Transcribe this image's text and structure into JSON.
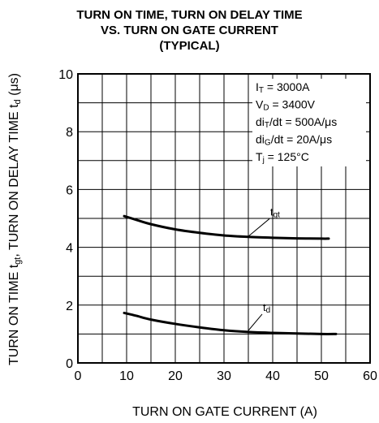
{
  "chart_data": {
    "type": "line",
    "title": [
      "TURN ON TIME, TURN ON DELAY TIME",
      "VS. TURN ON GATE CURRENT",
      "(TYPICAL)"
    ],
    "xlabel": "TURN ON GATE CURRENT  (A)",
    "ylabel": {
      "part1": "TURN ON TIME  ",
      "tgt_main": "t",
      "tgt_sub": "gt",
      "part2": ",  TURN ON DELAY TIME  ",
      "td_main": "t",
      "td_sub": "d",
      "unit": " (μs)"
    },
    "xlim": [
      0,
      60
    ],
    "ylim": [
      0,
      10
    ],
    "x_ticks": [
      "0",
      "10",
      "20",
      "30",
      "40",
      "50",
      "60"
    ],
    "y_ticks": [
      "0",
      "2",
      "4",
      "6",
      "8",
      "10"
    ],
    "grid": true,
    "conditions": [
      {
        "main": "I",
        "sub": "T",
        "rest": " = 3000A"
      },
      {
        "main": "V",
        "sub": "D",
        "rest": " = 3400V"
      },
      {
        "main": "di",
        "sub": "T",
        "rest": "/dt = 500A/μs"
      },
      {
        "main": "di",
        "sub": "G",
        "rest": "/dt = 20A/μs"
      },
      {
        "main": "T",
        "sub": "j",
        "rest": " = 125°C"
      }
    ],
    "series": [
      {
        "label_main": "t",
        "label_sub": "gt",
        "label_at": [
          40,
          5.1
        ],
        "leader_to": [
          35,
          4.38
        ],
        "x": [
          9.5,
          12,
          15,
          20,
          25,
          30,
          35,
          40,
          45,
          50,
          51.5
        ],
        "y": [
          5.08,
          4.95,
          4.8,
          4.62,
          4.5,
          4.41,
          4.36,
          4.33,
          4.31,
          4.3,
          4.3
        ]
      },
      {
        "label_main": "t",
        "label_sub": "d",
        "label_at": [
          38.5,
          1.8
        ],
        "leader_to": [
          35,
          1.12
        ],
        "x": [
          9.5,
          12,
          15,
          20,
          25,
          30,
          35,
          40,
          45,
          50,
          53
        ],
        "y": [
          1.73,
          1.63,
          1.5,
          1.35,
          1.23,
          1.13,
          1.07,
          1.04,
          1.02,
          1.0,
          1.0
        ]
      }
    ]
  }
}
